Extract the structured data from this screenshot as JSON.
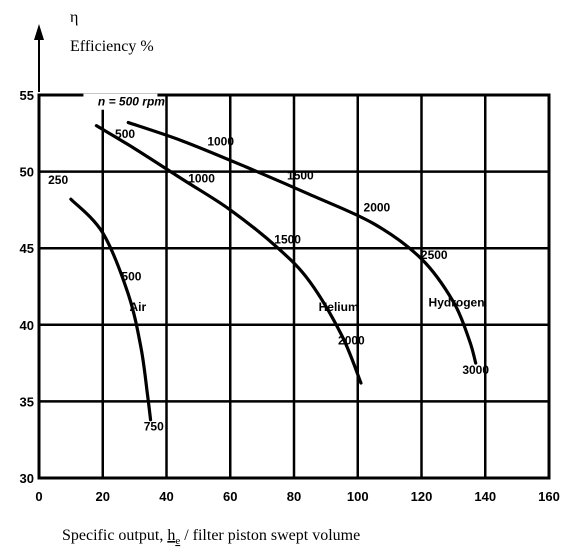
{
  "chart_data": {
    "type": "line",
    "ylabel_symbol": "η",
    "ylabel": "Efficiency %",
    "xlabel_prefix": "Specific output, ",
    "xlabel_symbol": "h",
    "xlabel_subscript": "e",
    "xlabel_suffix": " / filter piston swept volume",
    "xlim": [
      0,
      160
    ],
    "ylim": [
      30,
      55
    ],
    "x_ticks": [
      0,
      20,
      40,
      60,
      80,
      100,
      120,
      140,
      160
    ],
    "y_ticks": [
      30,
      35,
      40,
      45,
      50,
      55
    ],
    "grid": true,
    "series": [
      {
        "name": "Air",
        "x": [
          10,
          20,
          28,
          32,
          34,
          35
        ],
        "y": [
          48.2,
          46,
          42,
          38.5,
          35.5,
          33.8
        ]
      },
      {
        "name": "Helium",
        "x": [
          18,
          30,
          45,
          60,
          75,
          85,
          95,
          101
        ],
        "y": [
          53,
          51.5,
          49.5,
          47.5,
          45,
          42.8,
          39.3,
          36.2
        ]
      },
      {
        "name": "Hydrogen",
        "x": [
          28,
          45,
          65,
          85,
          105,
          120,
          130,
          135,
          137
        ],
        "y": [
          53.2,
          52,
          50.3,
          48.5,
          46.6,
          44.3,
          41.5,
          39,
          37.5
        ]
      }
    ],
    "annotations": [
      {
        "text": "n = 500 rpm",
        "x": 29,
        "y": 54.3
      },
      {
        "text": "250",
        "x": 6,
        "y": 49.2
      },
      {
        "text": "500",
        "x": 29,
        "y": 42.9
      },
      {
        "text": "Air",
        "x": 31,
        "y": 40.9
      },
      {
        "text": "750",
        "x": 36,
        "y": 33.1
      },
      {
        "text": "500",
        "x": 27,
        "y": 52.2
      },
      {
        "text": "1000",
        "x": 51,
        "y": 49.3
      },
      {
        "text": "1500",
        "x": 78,
        "y": 45.3
      },
      {
        "text": "Helium",
        "x": 94,
        "y": 40.9
      },
      {
        "text": "2000",
        "x": 98,
        "y": 38.7
      },
      {
        "text": "1000",
        "x": 57,
        "y": 51.7
      },
      {
        "text": "1500",
        "x": 82,
        "y": 49.5
      },
      {
        "text": "2000",
        "x": 106,
        "y": 47.4
      },
      {
        "text": "2500",
        "x": 124,
        "y": 44.3
      },
      {
        "text": "Hydrogen",
        "x": 131,
        "y": 41.2
      },
      {
        "text": "3000",
        "x": 137,
        "y": 36.8
      }
    ]
  }
}
